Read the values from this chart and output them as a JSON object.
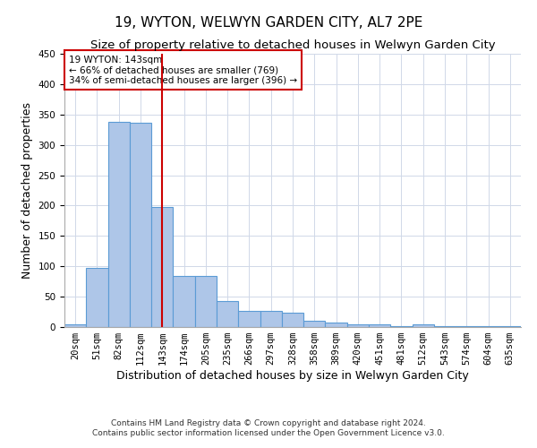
{
  "title": "19, WYTON, WELWYN GARDEN CITY, AL7 2PE",
  "subtitle": "Size of property relative to detached houses in Welwyn Garden City",
  "xlabel": "Distribution of detached houses by size in Welwyn Garden City",
  "ylabel": "Number of detached properties",
  "footnote1": "Contains HM Land Registry data © Crown copyright and database right 2024.",
  "footnote2": "Contains public sector information licensed under the Open Government Licence v3.0.",
  "categories": [
    "20sqm",
    "51sqm",
    "82sqm",
    "112sqm",
    "143sqm",
    "174sqm",
    "205sqm",
    "235sqm",
    "266sqm",
    "297sqm",
    "328sqm",
    "358sqm",
    "389sqm",
    "420sqm",
    "451sqm",
    "481sqm",
    "512sqm",
    "543sqm",
    "574sqm",
    "604sqm",
    "635sqm"
  ],
  "values": [
    5,
    97,
    338,
    337,
    197,
    84,
    84,
    43,
    27,
    26,
    23,
    10,
    7,
    5,
    4,
    2,
    5,
    2,
    2,
    2,
    2
  ],
  "bar_color": "#aec6e8",
  "bar_edge_color": "#5b9bd5",
  "vline_x": 4,
  "vline_color": "#cc0000",
  "annotation_text": "19 WYTON: 143sqm\n← 66% of detached houses are smaller (769)\n34% of semi-detached houses are larger (396) →",
  "annotation_box_color": "#ffffff",
  "annotation_box_edge_color": "#cc0000",
  "ylim": [
    0,
    450
  ],
  "yticks": [
    0,
    50,
    100,
    150,
    200,
    250,
    300,
    350,
    400,
    450
  ],
  "background_color": "#ffffff",
  "grid_color": "#d0d8e8",
  "title_fontsize": 11,
  "subtitle_fontsize": 9.5,
  "label_fontsize": 9,
  "tick_fontsize": 7.5,
  "footnote_fontsize": 6.5
}
